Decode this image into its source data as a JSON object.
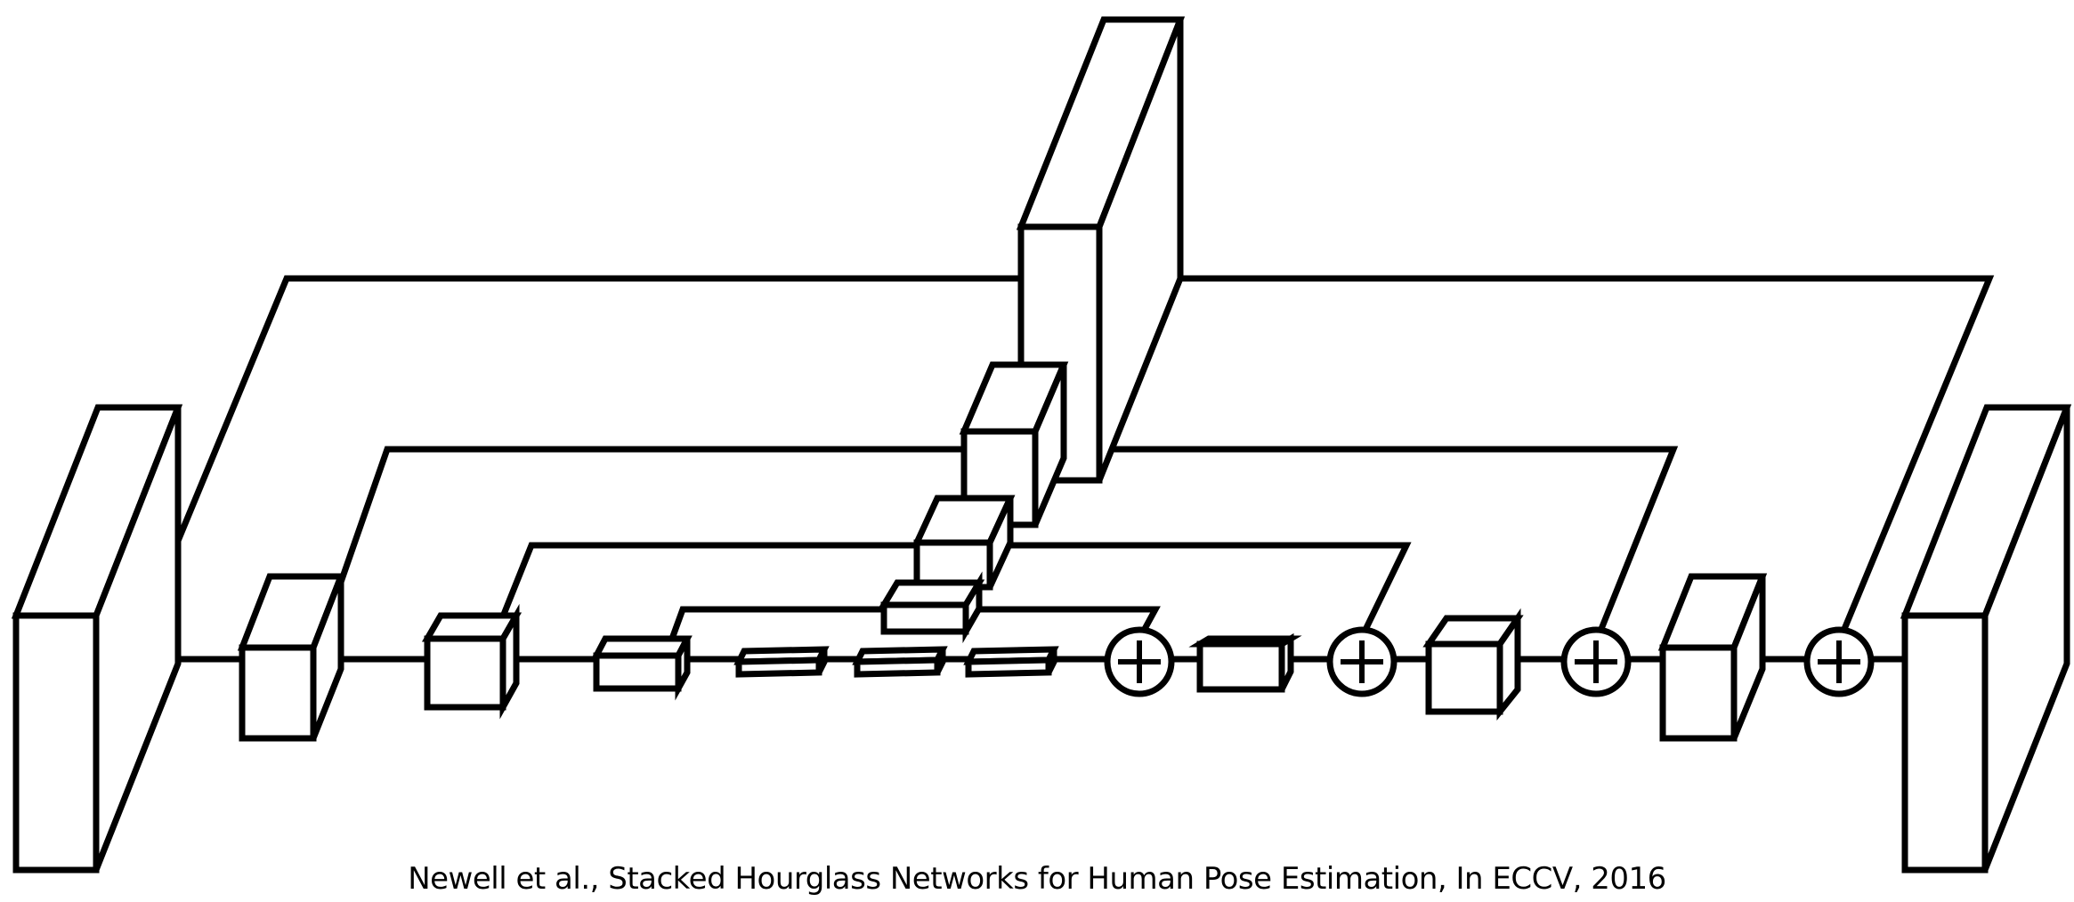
{
  "figure": {
    "caption": "Newell et al., Stacked Hourglass Networks for Human Pose Estimation, In ECCV, 2016",
    "stroke_color": "#000000",
    "fill_color": "#ffffff"
  }
}
